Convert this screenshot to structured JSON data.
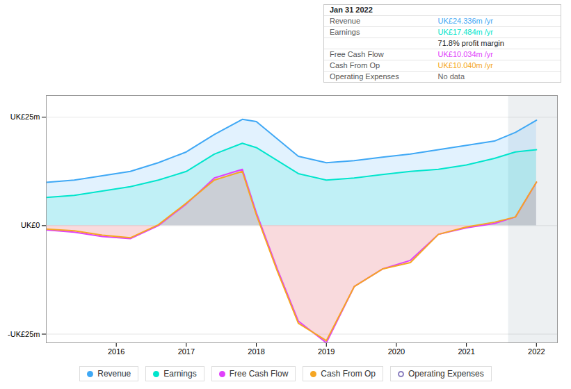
{
  "chart_data": {
    "type": "area",
    "x": [
      2015.0,
      2015.4,
      2015.8,
      2016.2,
      2016.6,
      2017.0,
      2017.4,
      2017.8,
      2018.0,
      2018.3,
      2018.6,
      2019.0,
      2019.4,
      2019.8,
      2020.2,
      2020.6,
      2021.0,
      2021.4,
      2021.7,
      2022.0
    ],
    "xlim": [
      2015.0,
      2022.3
    ],
    "xticks": [
      2016,
      2017,
      2018,
      2019,
      2020,
      2021,
      2022
    ],
    "ylim": [
      -27,
      30
    ],
    "yticks": [
      {
        "value": -25,
        "label": "-UK£25m"
      },
      {
        "value": 0,
        "label": "UK£0"
      },
      {
        "value": 25,
        "label": "UK£25m"
      }
    ],
    "grid": true,
    "legend": "bottom",
    "highlight_x": [
      2021.6,
      2022.3
    ],
    "series": [
      {
        "name": "Revenue",
        "color": "#3fa8f5",
        "marker": "circle",
        "values": [
          10.0,
          10.5,
          11.5,
          12.5,
          14.5,
          17.0,
          21.0,
          24.5,
          24.0,
          20.0,
          16.0,
          14.5,
          15.0,
          15.8,
          16.5,
          17.5,
          18.5,
          19.5,
          21.5,
          24.3
        ]
      },
      {
        "name": "Earnings",
        "color": "#00e5cc",
        "marker": "circle",
        "values": [
          6.5,
          7.0,
          8.0,
          9.0,
          10.5,
          12.5,
          16.5,
          19.0,
          18.0,
          15.0,
          12.0,
          10.5,
          11.0,
          11.8,
          12.5,
          13.0,
          14.0,
          15.5,
          17.0,
          17.5
        ]
      },
      {
        "name": "Free Cash Flow",
        "color": "#e040fb",
        "marker": "circle",
        "values": [
          -1.0,
          -1.5,
          -2.5,
          -3.0,
          0.0,
          5.0,
          11.0,
          13.0,
          3.0,
          -10.0,
          -22.0,
          -27.0,
          -14.0,
          -10.0,
          -8.0,
          -2.0,
          -0.5,
          0.5,
          2.0,
          10.0
        ]
      },
      {
        "name": "Cash From Op",
        "color": "#f5a623",
        "marker": "circle",
        "values": [
          -0.8,
          -1.2,
          -2.2,
          -2.8,
          0.2,
          5.2,
          10.5,
          12.5,
          2.5,
          -10.5,
          -22.5,
          -26.5,
          -14.0,
          -10.0,
          -8.5,
          -2.0,
          -0.3,
          0.8,
          2.0,
          10.04
        ]
      },
      {
        "name": "Operating Expenses",
        "color": "#8b7fbf",
        "marker": "open_circle",
        "values": [
          null,
          null,
          null,
          null,
          null,
          null,
          null,
          null,
          null,
          null,
          null,
          null,
          null,
          null,
          null,
          null,
          null,
          null,
          null,
          null
        ]
      }
    ],
    "annotations": [
      {
        "label": "Jan 31 2022"
      },
      {
        "label": "Revenue",
        "text": "UK£24.336m /yr",
        "color": "#3fa8f5"
      },
      {
        "label": "Earnings",
        "text": "UK£17.484m /yr",
        "color": "#00e5cc"
      },
      {
        "text": "71.8% profit margin"
      },
      {
        "label": "Free Cash Flow",
        "text": "UK£10.034m /yr",
        "color": "#e040fb"
      },
      {
        "label": "Cash From Op",
        "text": "UK£10.040m /yr",
        "color": "#f5a623"
      },
      {
        "label": "Operating Expenses",
        "text": "No data",
        "color": "#666666"
      }
    ]
  }
}
